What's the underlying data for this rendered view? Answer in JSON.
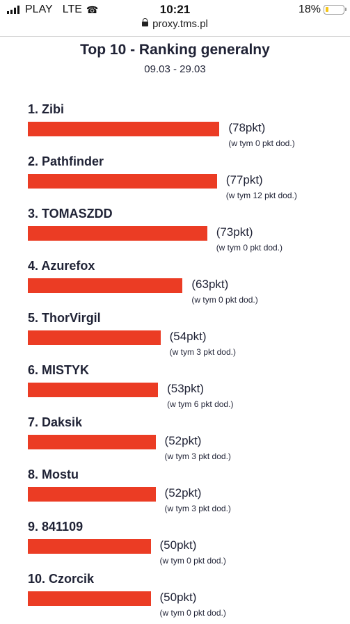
{
  "status_bar": {
    "carrier": "PLAY",
    "network": "LTE",
    "time": "10:21",
    "battery": "18%",
    "battery_level": 0.18,
    "battery_color": "#f5c518"
  },
  "browser": {
    "url": "proxy.tms.pl"
  },
  "chart_data": {
    "type": "bar",
    "orientation": "horizontal",
    "title": "Top 10 - Ranking generalny",
    "subtitle": "09.03 - 29.03",
    "bar_color": "#eb3c24",
    "categories": [
      "1. Zibi",
      "2. Pathfinder",
      "3. TOMASZDD",
      "4. Azurefox",
      "5. ThorVirgil",
      "6. MISTYK",
      "7. Daksik",
      "8. Mostu",
      "9. 841109",
      "10. Czorcik"
    ],
    "values": [
      78,
      77,
      73,
      63,
      54,
      53,
      52,
      52,
      50,
      50
    ],
    "value_labels": [
      "(78pkt)",
      "(77pkt)",
      "(73pkt)",
      "(63pkt)",
      "(54pkt)",
      "(53pkt)",
      "(52pkt)",
      "(52pkt)",
      "(50pkt)",
      "(50pkt)"
    ],
    "bonus_labels": [
      "(w tym 0 pkt dod.)",
      "(w tym 12 pkt dod.)",
      "(w tym 0 pkt dod.)",
      "(w tym 0 pkt dod.)",
      "(w tym 3 pkt dod.)",
      "(w tym 6 pkt dod.)",
      "(w tym 3 pkt dod.)",
      "(w tym 3 pkt dod.)",
      "(w tym 0 pkt dod.)",
      "(w tym 0 pkt dod.)"
    ]
  }
}
